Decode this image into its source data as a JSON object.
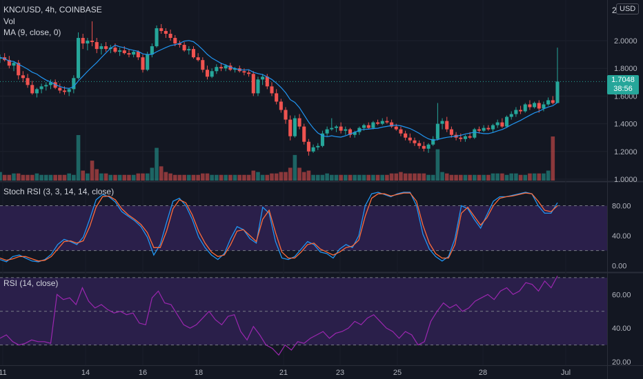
{
  "chart": {
    "symbol_line": "KNC/USD, 4h, COINBASE",
    "vol_label": "Vol",
    "ma_label": "MA (9, close, 0)",
    "stoch_label": "Stoch RSI (3, 3, 14, 14, close)",
    "rsi_label": "RSI (14, close)",
    "currency_badge": "USD",
    "top_partial_label": "2",
    "last_price": "1.7048",
    "countdown": "38:56",
    "colors": {
      "background": "#131722",
      "up": "#26a69a",
      "down": "#ef5350",
      "ma": "#2196f3",
      "stoch_k": "#2196f3",
      "stoch_d": "#ff6d3b",
      "rsi": "#9c27b0",
      "band": "#2a1f4a"
    }
  },
  "chart_data": [
    {
      "type": "candlestick",
      "y_ticks": [
        "2.0000",
        "1.8000",
        "1.6000",
        "1.4000",
        "1.2000",
        "1.0000"
      ],
      "ylim": [
        1.0,
        2.05
      ],
      "x_ticks": [
        "11",
        "14",
        "16",
        "18",
        "21",
        "23",
        "25",
        "28",
        "Jul"
      ],
      "candles": [
        [
          1.87,
          1.9,
          1.84,
          1.88
        ],
        [
          1.88,
          1.91,
          1.85,
          1.86
        ],
        [
          1.86,
          1.89,
          1.8,
          1.82
        ],
        [
          1.82,
          1.85,
          1.78,
          1.84
        ],
        [
          1.84,
          1.86,
          1.72,
          1.75
        ],
        [
          1.75,
          1.78,
          1.7,
          1.73
        ],
        [
          1.73,
          1.76,
          1.66,
          1.68
        ],
        [
          1.68,
          1.71,
          1.61,
          1.62
        ],
        [
          1.62,
          1.66,
          1.59,
          1.65
        ],
        [
          1.65,
          1.69,
          1.62,
          1.67
        ],
        [
          1.67,
          1.7,
          1.64,
          1.68
        ],
        [
          1.68,
          1.72,
          1.65,
          1.7
        ],
        [
          1.7,
          1.72,
          1.65,
          1.66
        ],
        [
          1.66,
          1.69,
          1.62,
          1.64
        ],
        [
          1.64,
          1.67,
          1.61,
          1.63
        ],
        [
          1.63,
          1.66,
          1.6,
          1.65
        ],
        [
          1.65,
          1.75,
          1.62,
          1.73
        ],
        [
          1.73,
          2.06,
          1.72,
          2.02
        ],
        [
          2.02,
          2.05,
          1.94,
          1.98
        ],
        [
          1.98,
          2.02,
          1.93,
          2.0
        ],
        [
          2.0,
          2.14,
          1.96,
          1.99
        ],
        [
          1.99,
          2.02,
          1.91,
          1.94
        ],
        [
          1.94,
          1.98,
          1.9,
          1.96
        ],
        [
          1.96,
          1.99,
          1.92,
          1.94
        ],
        [
          1.94,
          1.97,
          1.91,
          1.95
        ],
        [
          1.95,
          1.98,
          1.91,
          1.92
        ],
        [
          1.92,
          1.95,
          1.89,
          1.93
        ],
        [
          1.93,
          1.96,
          1.9,
          1.91
        ],
        [
          1.91,
          1.94,
          1.88,
          1.9
        ],
        [
          1.9,
          1.93,
          1.88,
          1.92
        ],
        [
          1.92,
          1.93,
          1.86,
          1.88
        ],
        [
          1.88,
          1.9,
          1.77,
          1.79
        ],
        [
          1.79,
          1.92,
          1.78,
          1.9
        ],
        [
          1.9,
          1.98,
          1.88,
          1.96
        ],
        [
          1.96,
          2.11,
          1.95,
          2.09
        ],
        [
          2.09,
          2.12,
          2.05,
          2.07
        ],
        [
          2.07,
          2.09,
          2.02,
          2.05
        ],
        [
          2.05,
          2.08,
          2.0,
          2.02
        ],
        [
          2.02,
          2.04,
          1.96,
          1.98
        ],
        [
          1.98,
          2.0,
          1.95,
          1.97
        ],
        [
          1.97,
          1.99,
          1.92,
          1.93
        ],
        [
          1.93,
          1.96,
          1.9,
          1.94
        ],
        [
          1.94,
          1.96,
          1.87,
          1.88
        ],
        [
          1.88,
          1.91,
          1.85,
          1.86
        ],
        [
          1.86,
          1.88,
          1.77,
          1.79
        ],
        [
          1.79,
          1.82,
          1.72,
          1.74
        ],
        [
          1.74,
          1.8,
          1.73,
          1.78
        ],
        [
          1.78,
          1.83,
          1.76,
          1.81
        ],
        [
          1.81,
          1.84,
          1.78,
          1.8
        ],
        [
          1.8,
          1.83,
          1.78,
          1.82
        ],
        [
          1.82,
          1.84,
          1.78,
          1.79
        ],
        [
          1.79,
          1.81,
          1.77,
          1.8
        ],
        [
          1.8,
          1.82,
          1.77,
          1.78
        ],
        [
          1.78,
          1.8,
          1.75,
          1.77
        ],
        [
          1.77,
          1.79,
          1.74,
          1.76
        ],
        [
          1.76,
          1.78,
          1.6,
          1.62
        ],
        [
          1.62,
          1.74,
          1.6,
          1.72
        ],
        [
          1.72,
          1.76,
          1.68,
          1.74
        ],
        [
          1.74,
          1.76,
          1.65,
          1.67
        ],
        [
          1.67,
          1.7,
          1.6,
          1.62
        ],
        [
          1.62,
          1.65,
          1.54,
          1.56
        ],
        [
          1.56,
          1.58,
          1.48,
          1.5
        ],
        [
          1.5,
          1.52,
          1.4,
          1.43
        ],
        [
          1.43,
          1.46,
          1.28,
          1.31
        ],
        [
          1.31,
          1.46,
          1.3,
          1.44
        ],
        [
          1.44,
          1.47,
          1.36,
          1.38
        ],
        [
          1.38,
          1.4,
          1.25,
          1.27
        ],
        [
          1.27,
          1.29,
          1.17,
          1.2
        ],
        [
          1.2,
          1.25,
          1.19,
          1.23
        ],
        [
          1.23,
          1.26,
          1.21,
          1.24
        ],
        [
          1.24,
          1.35,
          1.23,
          1.33
        ],
        [
          1.33,
          1.38,
          1.31,
          1.36
        ],
        [
          1.36,
          1.44,
          1.35,
          1.37
        ],
        [
          1.37,
          1.39,
          1.34,
          1.38
        ],
        [
          1.38,
          1.41,
          1.33,
          1.35
        ],
        [
          1.35,
          1.38,
          1.32,
          1.36
        ],
        [
          1.36,
          1.37,
          1.3,
          1.32
        ],
        [
          1.32,
          1.35,
          1.3,
          1.34
        ],
        [
          1.34,
          1.38,
          1.32,
          1.37
        ],
        [
          1.37,
          1.4,
          1.35,
          1.39
        ],
        [
          1.39,
          1.41,
          1.36,
          1.37
        ],
        [
          1.37,
          1.42,
          1.36,
          1.41
        ],
        [
          1.41,
          1.43,
          1.39,
          1.4
        ],
        [
          1.4,
          1.44,
          1.39,
          1.42
        ],
        [
          1.42,
          1.45,
          1.4,
          1.41
        ],
        [
          1.41,
          1.43,
          1.37,
          1.38
        ],
        [
          1.38,
          1.4,
          1.35,
          1.36
        ],
        [
          1.36,
          1.38,
          1.31,
          1.33
        ],
        [
          1.33,
          1.35,
          1.28,
          1.3
        ],
        [
          1.3,
          1.33,
          1.26,
          1.28
        ],
        [
          1.28,
          1.3,
          1.24,
          1.26
        ],
        [
          1.26,
          1.28,
          1.22,
          1.24
        ],
        [
          1.24,
          1.27,
          1.2,
          1.22
        ],
        [
          1.22,
          1.26,
          1.19,
          1.25
        ],
        [
          1.25,
          1.31,
          1.24,
          1.29
        ],
        [
          1.29,
          1.55,
          1.28,
          1.4
        ],
        [
          1.4,
          1.44,
          1.36,
          1.42
        ],
        [
          1.42,
          1.45,
          1.34,
          1.36
        ],
        [
          1.36,
          1.38,
          1.3,
          1.32
        ],
        [
          1.32,
          1.34,
          1.28,
          1.3
        ],
        [
          1.3,
          1.33,
          1.27,
          1.29
        ],
        [
          1.29,
          1.32,
          1.27,
          1.31
        ],
        [
          1.31,
          1.34,
          1.29,
          1.3
        ],
        [
          1.3,
          1.37,
          1.29,
          1.36
        ],
        [
          1.36,
          1.38,
          1.33,
          1.35
        ],
        [
          1.35,
          1.39,
          1.34,
          1.37
        ],
        [
          1.37,
          1.39,
          1.35,
          1.36
        ],
        [
          1.36,
          1.4,
          1.34,
          1.39
        ],
        [
          1.39,
          1.43,
          1.37,
          1.41
        ],
        [
          1.41,
          1.44,
          1.37,
          1.38
        ],
        [
          1.38,
          1.46,
          1.37,
          1.45
        ],
        [
          1.45,
          1.49,
          1.43,
          1.47
        ],
        [
          1.47,
          1.52,
          1.45,
          1.5
        ],
        [
          1.5,
          1.53,
          1.47,
          1.49
        ],
        [
          1.49,
          1.55,
          1.48,
          1.54
        ],
        [
          1.54,
          1.57,
          1.5,
          1.52
        ],
        [
          1.52,
          1.56,
          1.51,
          1.55
        ],
        [
          1.55,
          1.57,
          1.48,
          1.51
        ],
        [
          1.51,
          1.56,
          1.49,
          1.54
        ],
        [
          1.54,
          1.59,
          1.53,
          1.57
        ],
        [
          1.57,
          1.6,
          1.54,
          1.55
        ],
        [
          1.55,
          1.95,
          1.55,
          1.7048
        ]
      ],
      "volume": [
        6,
        4,
        4,
        5,
        5,
        4,
        4,
        4,
        5,
        4,
        4,
        4,
        4,
        4,
        4,
        5,
        4,
        32,
        7,
        5,
        14,
        8,
        5,
        5,
        4,
        4,
        4,
        4,
        4,
        4,
        5,
        5,
        5,
        9,
        23,
        10,
        6,
        5,
        4,
        4,
        4,
        4,
        4,
        4,
        5,
        5,
        4,
        4,
        4,
        4,
        4,
        4,
        4,
        4,
        4,
        7,
        6,
        4,
        4,
        5,
        5,
        6,
        6,
        9,
        18,
        9,
        6,
        7,
        4,
        4,
        4,
        5,
        4,
        4,
        4,
        4,
        4,
        4,
        4,
        4,
        4,
        4,
        4,
        4,
        4,
        5,
        5,
        6,
        5,
        5,
        5,
        5,
        5,
        4,
        4,
        22,
        6,
        5,
        4,
        4,
        4,
        4,
        4,
        4,
        4,
        4,
        4,
        5,
        5,
        5,
        4,
        5,
        5,
        4,
        4,
        5,
        5,
        5,
        5,
        7,
        31
      ],
      "moving_average": {
        "name": "MA (9, close, 0)"
      }
    },
    {
      "type": "line",
      "name": "Stoch RSI (3, 3, 14, 14, close)",
      "y_ticks": [
        "80.00",
        "40.00",
        "0.00"
      ],
      "ylim": [
        -8,
        110
      ],
      "band": [
        20,
        80
      ],
      "series": [
        {
          "name": "K",
          "values": [
            8,
            5,
            12,
            14,
            10,
            6,
            5,
            8,
            15,
            28,
            35,
            32,
            28,
            38,
            62,
            88,
            95,
            92,
            85,
            72,
            66,
            60,
            52,
            38,
            14,
            28,
            58,
            86,
            90,
            80,
            62,
            38,
            24,
            14,
            8,
            16,
            36,
            52,
            48,
            36,
            30,
            78,
            70,
            32,
            10,
            8,
            12,
            22,
            32,
            28,
            18,
            16,
            10,
            22,
            28,
            24,
            40,
            80,
            96,
            98,
            95,
            92,
            96,
            98,
            98,
            80,
            42,
            22,
            12,
            6,
            12,
            36,
            80,
            76,
            62,
            50,
            68,
            86,
            92,
            92,
            94,
            96,
            98,
            96,
            80,
            70,
            70,
            84
          ]
        },
        {
          "name": "D",
          "values": [
            10,
            7,
            9,
            12,
            12,
            9,
            6,
            7,
            12,
            22,
            32,
            33,
            30,
            33,
            52,
            78,
            92,
            93,
            88,
            76,
            68,
            62,
            55,
            44,
            24,
            24,
            46,
            76,
            88,
            84,
            68,
            46,
            30,
            18,
            12,
            14,
            28,
            46,
            48,
            40,
            32,
            62,
            74,
            44,
            18,
            10,
            10,
            18,
            28,
            30,
            22,
            18,
            14,
            18,
            24,
            26,
            34,
            66,
            90,
            96,
            96,
            93,
            95,
            97,
            97,
            86,
            54,
            30,
            16,
            10,
            10,
            28,
            70,
            78,
            66,
            54,
            64,
            80,
            90,
            92,
            93,
            95,
            97,
            96,
            86,
            74,
            72,
            80
          ]
        }
      ]
    },
    {
      "type": "line",
      "name": "RSI (14, close)",
      "y_ticks": [
        "60.00",
        "40.00",
        "20.00"
      ],
      "ylim": [
        18,
        72
      ],
      "band": [
        30,
        70
      ],
      "series": [
        {
          "name": "RSI",
          "values": [
            34,
            36,
            32,
            30,
            31,
            33,
            32,
            32,
            31,
            60,
            57,
            58,
            54,
            64,
            56,
            52,
            54,
            51,
            49,
            50,
            48,
            49,
            43,
            42,
            58,
            62,
            55,
            54,
            48,
            42,
            40,
            42,
            46,
            50,
            45,
            42,
            47,
            48,
            38,
            33,
            41,
            36,
            30,
            28,
            24,
            30,
            27,
            32,
            31,
            34,
            36,
            38,
            34,
            37,
            38,
            40,
            44,
            42,
            46,
            48,
            44,
            40,
            38,
            34,
            38,
            36,
            30,
            32,
            44,
            50,
            55,
            52,
            54,
            50,
            52,
            56,
            58,
            60,
            57,
            62,
            64,
            60,
            62,
            67,
            66,
            62,
            68,
            64,
            71
          ]
        }
      ]
    }
  ]
}
